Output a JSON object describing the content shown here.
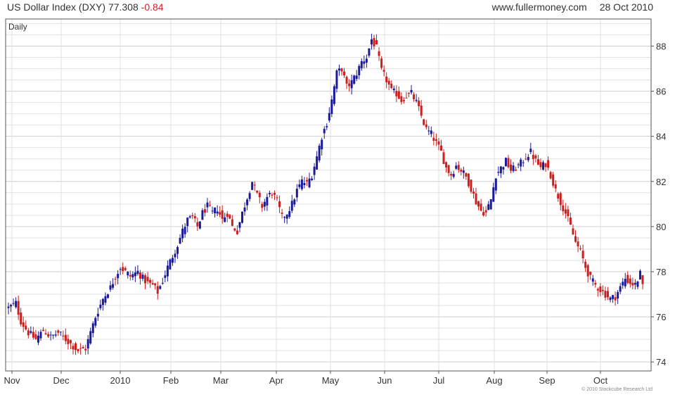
{
  "header": {
    "instrument": "US Dollar Index (DXY)",
    "last": "77.308",
    "change": "-0.84",
    "site": "www.fullermoney.com",
    "date": "28 Oct 2010"
  },
  "panel_label": "Daily",
  "footer": {
    "copyright": "© 2010 Stockcube Research Ltd"
  },
  "colors": {
    "up": "#1a1a9c",
    "down": "#cc1f1f",
    "grid": "#e2e2e2",
    "axis": "#555555",
    "text": "#333333"
  },
  "chart_data": {
    "type": "candlestick",
    "title": "US Dollar Index (DXY)",
    "timeframe": "Daily",
    "x_labels": [
      "Nov",
      "Dec",
      "2010",
      "Feb",
      "Mar",
      "Apr",
      "May",
      "Jun",
      "Jul",
      "Aug",
      "Sep",
      "Oct"
    ],
    "y_ticks": [
      74,
      76,
      78,
      80,
      82,
      84,
      86,
      88
    ],
    "ylim": [
      73.6,
      89.2
    ],
    "grid": true,
    "y_axis_position": "right",
    "date_range": [
      "2009-10-29",
      "2010-10-28"
    ],
    "closes": [
      [
        0,
        76.4
      ],
      [
        3,
        76.6
      ],
      [
        5,
        75.8
      ],
      [
        8,
        75.3
      ],
      [
        11,
        75.0
      ],
      [
        14,
        75.4
      ],
      [
        17,
        75.1
      ],
      [
        20,
        75.3
      ],
      [
        23,
        75.0
      ],
      [
        26,
        74.7
      ],
      [
        28,
        74.5
      ],
      [
        31,
        74.6
      ],
      [
        33,
        75.3
      ],
      [
        35,
        76.0
      ],
      [
        38,
        76.8
      ],
      [
        41,
        77.3
      ],
      [
        43,
        77.8
      ],
      [
        45,
        78.2
      ],
      [
        47,
        78.0
      ],
      [
        49,
        77.8
      ],
      [
        52,
        78.0
      ],
      [
        54,
        77.7
      ],
      [
        56,
        77.5
      ],
      [
        58,
        77.4
      ],
      [
        60,
        77.1
      ],
      [
        62,
        77.6
      ],
      [
        64,
        78.2
      ],
      [
        66,
        78.7
      ],
      [
        68,
        79.2
      ],
      [
        70,
        79.8
      ],
      [
        72,
        80.3
      ],
      [
        74,
        80.4
      ],
      [
        76,
        80.0
      ],
      [
        78,
        80.6
      ],
      [
        80,
        80.9
      ],
      [
        82,
        80.6
      ],
      [
        84,
        80.8
      ],
      [
        86,
        80.3
      ],
      [
        88,
        80.6
      ],
      [
        90,
        80.0
      ],
      [
        92,
        79.8
      ],
      [
        94,
        80.6
      ],
      [
        96,
        81.3
      ],
      [
        98,
        82.0
      ],
      [
        100,
        81.4
      ],
      [
        102,
        80.9
      ],
      [
        104,
        81.3
      ],
      [
        106,
        81.5
      ],
      [
        108,
        81.1
      ],
      [
        110,
        80.4
      ],
      [
        112,
        80.6
      ],
      [
        114,
        81.0
      ],
      [
        116,
        81.6
      ],
      [
        118,
        82.0
      ],
      [
        120,
        81.9
      ],
      [
        122,
        82.3
      ],
      [
        124,
        83.1
      ],
      [
        126,
        84.0
      ],
      [
        128,
        84.6
      ],
      [
        130,
        85.6
      ],
      [
        132,
        86.8
      ],
      [
        134,
        87.0
      ],
      [
        136,
        86.2
      ],
      [
        138,
        86.4
      ],
      [
        140,
        86.8
      ],
      [
        142,
        87.3
      ],
      [
        144,
        87.5
      ],
      [
        146,
        88.3
      ],
      [
        148,
        87.9
      ],
      [
        150,
        86.9
      ],
      [
        152,
        86.5
      ],
      [
        154,
        86.0
      ],
      [
        156,
        85.9
      ],
      [
        158,
        85.6
      ],
      [
        160,
        85.8
      ],
      [
        162,
        85.9
      ],
      [
        164,
        85.5
      ],
      [
        166,
        84.9
      ],
      [
        168,
        84.3
      ],
      [
        170,
        84.1
      ],
      [
        172,
        83.7
      ],
      [
        174,
        83.3
      ],
      [
        176,
        82.6
      ],
      [
        178,
        82.3
      ],
      [
        180,
        82.7
      ],
      [
        182,
        82.5
      ],
      [
        184,
        82.2
      ],
      [
        186,
        81.7
      ],
      [
        188,
        81.1
      ],
      [
        190,
        80.7
      ],
      [
        192,
        80.6
      ],
      [
        194,
        81.2
      ],
      [
        196,
        82.3
      ],
      [
        198,
        82.6
      ],
      [
        200,
        82.9
      ],
      [
        202,
        82.5
      ],
      [
        204,
        82.6
      ],
      [
        206,
        82.8
      ],
      [
        208,
        83.1
      ],
      [
        210,
        83.3
      ],
      [
        212,
        82.9
      ],
      [
        214,
        82.6
      ],
      [
        216,
        82.8
      ],
      [
        218,
        82.3
      ],
      [
        220,
        81.6
      ],
      [
        222,
        81.1
      ],
      [
        224,
        80.6
      ],
      [
        226,
        80.0
      ],
      [
        228,
        79.3
      ],
      [
        230,
        78.9
      ],
      [
        232,
        78.2
      ],
      [
        234,
        77.7
      ],
      [
        236,
        77.4
      ],
      [
        238,
        77.2
      ],
      [
        240,
        77.0
      ],
      [
        242,
        76.8
      ],
      [
        244,
        76.9
      ],
      [
        246,
        77.3
      ],
      [
        248,
        77.7
      ],
      [
        250,
        77.5
      ],
      [
        252,
        77.4
      ],
      [
        254,
        77.9
      ],
      [
        255,
        77.3
      ]
    ]
  }
}
